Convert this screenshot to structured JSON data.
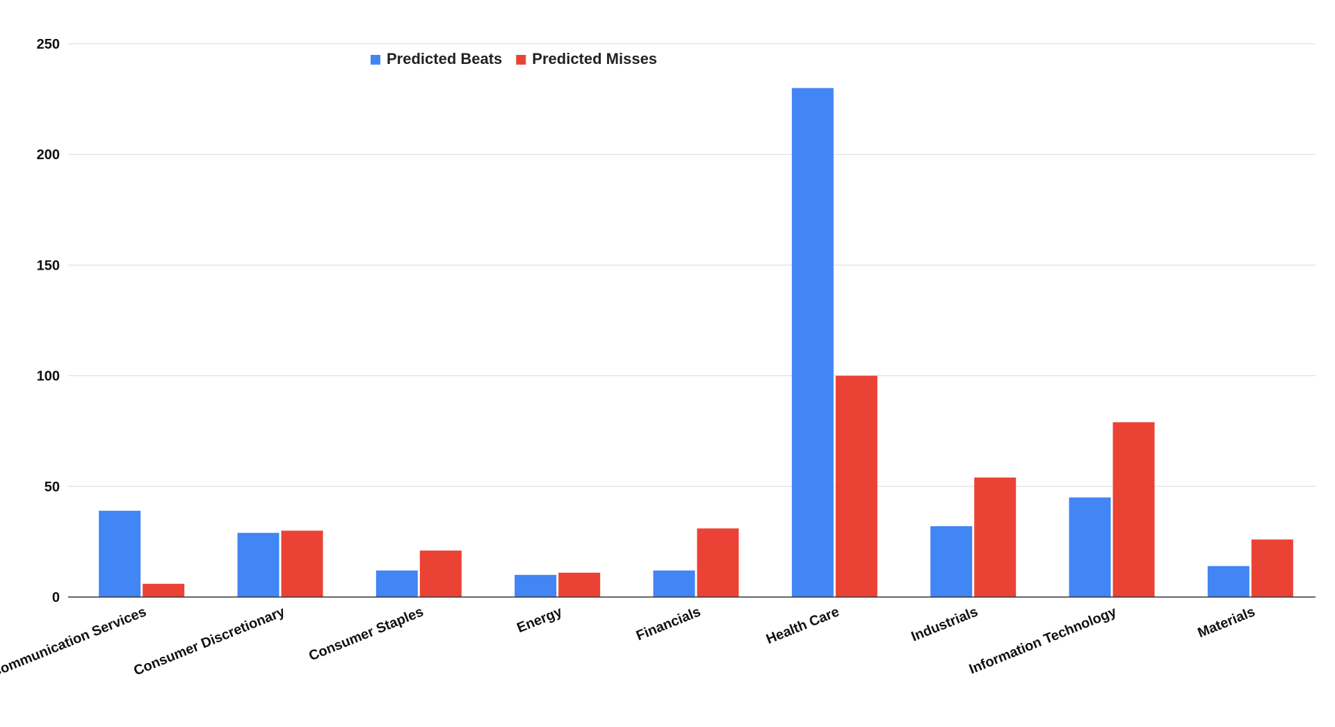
{
  "chart_data": {
    "type": "bar",
    "title": "",
    "xlabel": "",
    "ylabel": "",
    "ylim": [
      0,
      250
    ],
    "yticks": [
      0,
      50,
      100,
      150,
      200,
      250
    ],
    "grid": true,
    "legend_position": "top-left",
    "categories": [
      "Communication Services",
      "Consumer Discretionary",
      "Consumer Staples",
      "Energy",
      "Financials",
      "Health Care",
      "Industrials",
      "Information Technology",
      "Materials"
    ],
    "series": [
      {
        "name": "Predicted Beats",
        "color": "#4285f4",
        "values": [
          39,
          29,
          12,
          10,
          12,
          230,
          32,
          45,
          14
        ]
      },
      {
        "name": "Predicted Misses",
        "color": "#ea4335",
        "values": [
          6,
          30,
          21,
          11,
          31,
          100,
          54,
          79,
          26
        ]
      }
    ]
  }
}
